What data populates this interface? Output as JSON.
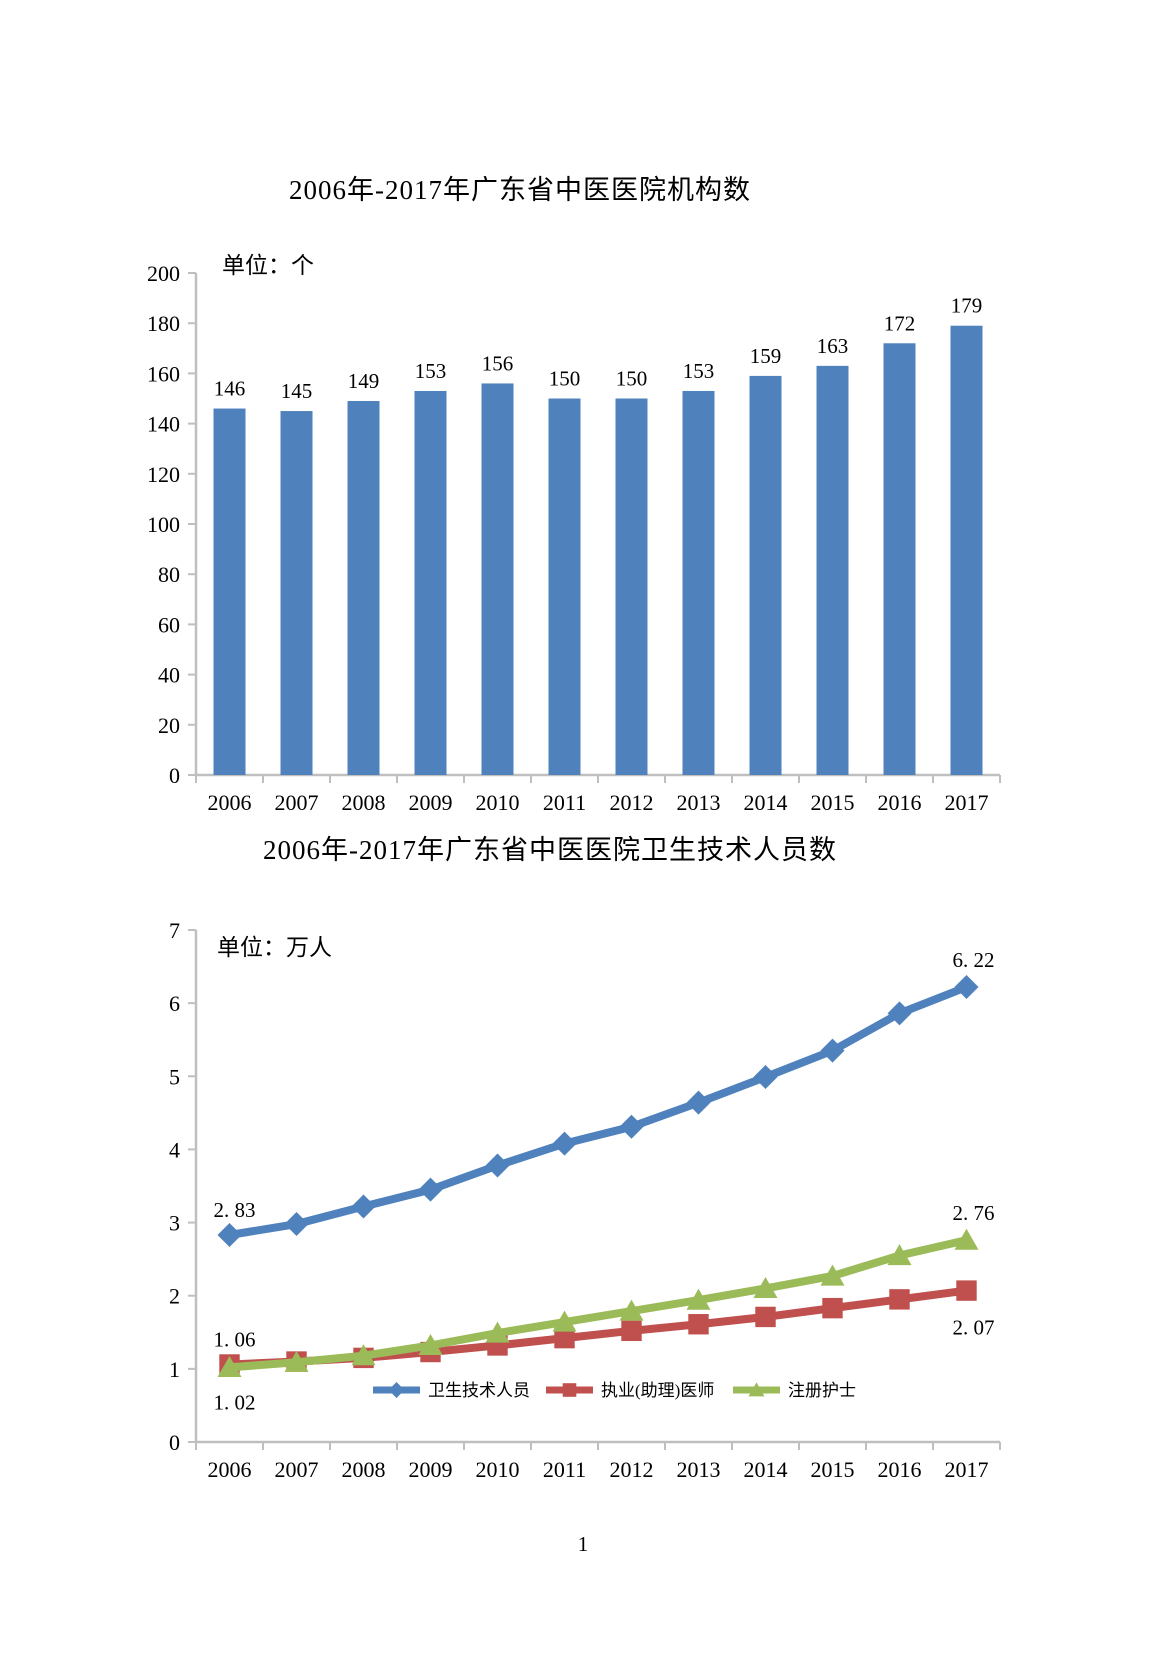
{
  "page": {
    "number": "1"
  },
  "colors": {
    "bar": "#4F81BD",
    "series_blue": "#4F81BD",
    "series_red": "#C0504D",
    "series_green": "#9BBB59",
    "axis": "#BFBFBF",
    "text": "#000000",
    "background": "#FFFFFF"
  },
  "chart_data": [
    {
      "type": "bar",
      "title": "2006年-2017年广东省中医医院机构数",
      "unit_label": "单位：个",
      "categories": [
        "2006",
        "2007",
        "2008",
        "2009",
        "2010",
        "2011",
        "2012",
        "2013",
        "2014",
        "2015",
        "2016",
        "2017"
      ],
      "values": [
        146,
        145,
        149,
        153,
        156,
        150,
        150,
        153,
        159,
        163,
        172,
        179
      ],
      "ylim": [
        0,
        200
      ],
      "ytick_step": 20,
      "grid": false,
      "legend": "none",
      "data_labels": true,
      "bar_color": "#4F81BD"
    },
    {
      "type": "line",
      "title": "2006年-2017年广东省中医医院卫生技术人员数",
      "unit_label": "单位：万人",
      "categories": [
        "2006",
        "2007",
        "2008",
        "2009",
        "2010",
        "2011",
        "2012",
        "2013",
        "2014",
        "2015",
        "2016",
        "2017"
      ],
      "ylim": [
        0,
        7
      ],
      "ytick_step": 1,
      "grid": false,
      "legend_position": "bottom-inside",
      "series": [
        {
          "name": "卫生技术人员",
          "color": "#4F81BD",
          "marker": "diamond",
          "values": [
            2.83,
            2.98,
            3.22,
            3.45,
            3.78,
            4.08,
            4.31,
            4.64,
            4.99,
            5.35,
            5.86,
            6.22
          ],
          "endpoint_labels": {
            "first": {
              "text": "2. 83",
              "pos": "above"
            },
            "last": {
              "text": "6. 22",
              "pos": "above"
            }
          }
        },
        {
          "name": "执业(助理)医师",
          "color": "#C0504D",
          "marker": "square",
          "values": [
            1.06,
            1.1,
            1.15,
            1.23,
            1.32,
            1.42,
            1.52,
            1.61,
            1.71,
            1.83,
            1.95,
            2.07
          ],
          "endpoint_labels": {
            "first": {
              "text": "1. 06",
              "pos": "above"
            },
            "last": {
              "text": "2. 07",
              "pos": "below"
            }
          }
        },
        {
          "name": "注册护士",
          "color": "#9BBB59",
          "marker": "triangle",
          "values": [
            1.02,
            1.09,
            1.18,
            1.32,
            1.49,
            1.64,
            1.79,
            1.94,
            2.1,
            2.27,
            2.55,
            2.76
          ],
          "endpoint_labels": {
            "first": {
              "text": "1. 02",
              "pos": "below"
            },
            "last": {
              "text": "2. 76",
              "pos": "above"
            }
          }
        }
      ]
    }
  ]
}
